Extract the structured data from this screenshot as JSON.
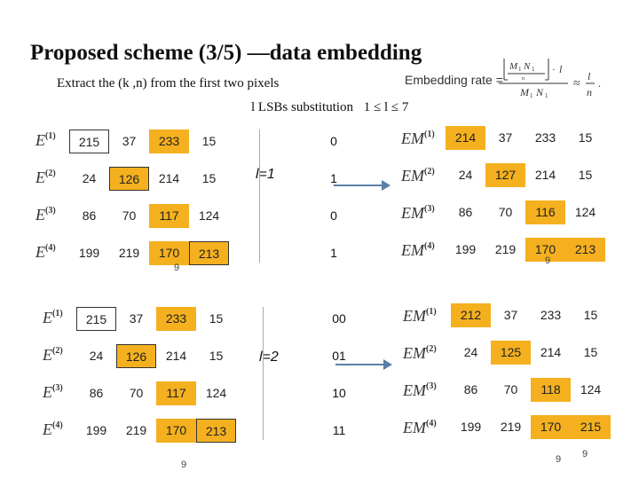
{
  "title": "Proposed scheme (3/5) —data embedding",
  "subtitle": "Extract the  (k ,n) from the first two pixels",
  "lsb_text": "l LSBs substitution",
  "lsb_range": "1 ≤ l ≤ 7",
  "rate_label": "Embedding rate =",
  "blocks": [
    {
      "l_label": "l=1",
      "rows_in": [
        {
          "label": "E",
          "sup": "(1)",
          "vals": [
            "215",
            "37",
            "233",
            "15"
          ]
        },
        {
          "label": "E",
          "sup": "(2)",
          "vals": [
            "24",
            "126",
            "214",
            "15"
          ]
        },
        {
          "label": "E",
          "sup": "(3)",
          "vals": [
            "86",
            "70",
            "117",
            "124"
          ]
        },
        {
          "label": "E",
          "sup": "(4)",
          "vals": [
            "199",
            "219",
            "170",
            "213"
          ]
        }
      ],
      "bits": [
        "0",
        "1",
        "0",
        "1"
      ],
      "rows_out": [
        {
          "label": "EM",
          "sup": "(1)",
          "vals": [
            "214",
            "37",
            "233",
            "15"
          ]
        },
        {
          "label": "EM",
          "sup": "(2)",
          "vals": [
            "24",
            "127",
            "214",
            "15"
          ]
        },
        {
          "label": "EM",
          "sup": "(3)",
          "vals": [
            "86",
            "70",
            "116",
            "124"
          ]
        },
        {
          "label": "EM",
          "sup": "(4)",
          "vals": [
            "199",
            "219",
            "170",
            "213"
          ]
        }
      ],
      "nine_in": "9",
      "nine_out": "9"
    },
    {
      "l_label": "l=2",
      "rows_in": [
        {
          "label": "E",
          "sup": "(1)",
          "vals": [
            "215",
            "37",
            "233",
            "15"
          ]
        },
        {
          "label": "E",
          "sup": "(2)",
          "vals": [
            "24",
            "126",
            "214",
            "15"
          ]
        },
        {
          "label": "E",
          "sup": "(3)",
          "vals": [
            "86",
            "70",
            "117",
            "124"
          ]
        },
        {
          "label": "E",
          "sup": "(4)",
          "vals": [
            "199",
            "219",
            "170",
            "213"
          ]
        }
      ],
      "bits": [
        "00",
        "01",
        "10",
        "11"
      ],
      "rows_out": [
        {
          "label": "EM",
          "sup": "(1)",
          "vals": [
            "212",
            "37",
            "233",
            "15"
          ]
        },
        {
          "label": "EM",
          "sup": "(2)",
          "vals": [
            "24",
            "125",
            "214",
            "15"
          ]
        },
        {
          "label": "EM",
          "sup": "(3)",
          "vals": [
            "86",
            "70",
            "118",
            "124"
          ]
        },
        {
          "label": "EM",
          "sup": "(4)",
          "vals": [
            "199",
            "219",
            "170",
            "215"
          ]
        }
      ],
      "nine_in": "9",
      "nine_out": "9",
      "nine_out2": "9"
    }
  ],
  "colors": {
    "highlight": "#f4b01e",
    "arrow": "#5b7fa6"
  }
}
